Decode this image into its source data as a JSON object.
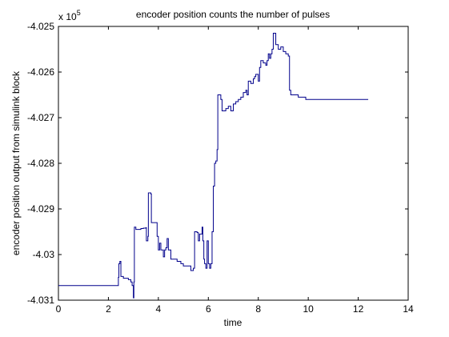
{
  "chart_data": {
    "type": "line",
    "title": "encoder position counts the number of pulses",
    "xlabel": "time",
    "ylabel": "encoder position output from simulink block",
    "exponent_label": {
      "base": "x 10",
      "power": "5"
    },
    "xlim": [
      0,
      14
    ],
    "ylim": [
      -4.031,
      -4.025
    ],
    "xticks": [
      "0",
      "2",
      "4",
      "6",
      "8",
      "10",
      "12",
      "14"
    ],
    "yticks": [
      "-4.025",
      "-4.026",
      "-4.027",
      "-4.028",
      "-4.029",
      "-4.03",
      "-4.031"
    ],
    "grid": false,
    "line_color": "#00008B",
    "series": [
      {
        "points": [
          [
            0.0,
            -4.03068
          ],
          [
            2.35,
            -4.03068
          ],
          [
            2.4,
            -4.0305
          ],
          [
            2.42,
            -4.0302
          ],
          [
            2.46,
            -4.03015
          ],
          [
            2.5,
            -4.03048
          ],
          [
            2.6,
            -4.03052
          ],
          [
            2.7,
            -4.03052
          ],
          [
            2.8,
            -4.03055
          ],
          [
            2.9,
            -4.0306
          ],
          [
            2.95,
            -4.03068
          ],
          [
            3.0,
            -4.03095
          ],
          [
            3.02,
            -4.0306
          ],
          [
            3.04,
            -4.0294
          ],
          [
            3.1,
            -4.02945
          ],
          [
            3.3,
            -4.02943
          ],
          [
            3.4,
            -4.02942
          ],
          [
            3.5,
            -4.02941
          ],
          [
            3.52,
            -4.0297
          ],
          [
            3.58,
            -4.0296
          ],
          [
            3.6,
            -4.02865
          ],
          [
            3.7,
            -4.02867
          ],
          [
            3.72,
            -4.0293
          ],
          [
            3.9,
            -4.0293
          ],
          [
            3.95,
            -4.0296
          ],
          [
            4.0,
            -4.0299
          ],
          [
            4.05,
            -4.02975
          ],
          [
            4.1,
            -4.0299
          ],
          [
            4.2,
            -4.03005
          ],
          [
            4.25,
            -4.0299
          ],
          [
            4.3,
            -4.02985
          ],
          [
            4.35,
            -4.02965
          ],
          [
            4.4,
            -4.0299
          ],
          [
            4.5,
            -4.0301
          ],
          [
            4.6,
            -4.0301
          ],
          [
            4.75,
            -4.03015
          ],
          [
            4.9,
            -4.0302
          ],
          [
            5.0,
            -4.03025
          ],
          [
            5.1,
            -4.03025
          ],
          [
            5.2,
            -4.03025
          ],
          [
            5.3,
            -4.03035
          ],
          [
            5.4,
            -4.0303
          ],
          [
            5.45,
            -4.0295
          ],
          [
            5.55,
            -4.02952
          ],
          [
            5.6,
            -4.0297
          ],
          [
            5.65,
            -4.02955
          ],
          [
            5.7,
            -4.02955
          ],
          [
            5.75,
            -4.0294
          ],
          [
            5.78,
            -4.0297
          ],
          [
            5.82,
            -4.0301
          ],
          [
            5.85,
            -4.0302
          ],
          [
            5.9,
            -4.0303
          ],
          [
            5.95,
            -4.0297
          ],
          [
            6.0,
            -4.0302
          ],
          [
            6.05,
            -4.0303
          ],
          [
            6.1,
            -4.0302
          ],
          [
            6.15,
            -4.0295
          ],
          [
            6.2,
            -4.0285
          ],
          [
            6.25,
            -4.028
          ],
          [
            6.3,
            -4.02795
          ],
          [
            6.35,
            -4.0277
          ],
          [
            6.38,
            -4.0265
          ],
          [
            6.45,
            -4.0265
          ],
          [
            6.5,
            -4.0266
          ],
          [
            6.55,
            -4.02685
          ],
          [
            6.6,
            -4.02685
          ],
          [
            6.7,
            -4.0268
          ],
          [
            6.8,
            -4.02675
          ],
          [
            6.9,
            -4.02685
          ],
          [
            7.0,
            -4.0267
          ],
          [
            7.1,
            -4.02665
          ],
          [
            7.2,
            -4.0266
          ],
          [
            7.3,
            -4.02655
          ],
          [
            7.4,
            -4.02645
          ],
          [
            7.5,
            -4.0264
          ],
          [
            7.55,
            -4.0265
          ],
          [
            7.6,
            -4.0262
          ],
          [
            7.7,
            -4.02625
          ],
          [
            7.8,
            -4.02615
          ],
          [
            7.85,
            -4.0261
          ],
          [
            7.9,
            -4.02605
          ],
          [
            8.0,
            -4.0262
          ],
          [
            8.05,
            -4.0259
          ],
          [
            8.1,
            -4.02575
          ],
          [
            8.2,
            -4.0258
          ],
          [
            8.3,
            -4.02585
          ],
          [
            8.35,
            -4.02575
          ],
          [
            8.4,
            -4.0256
          ],
          [
            8.45,
            -4.0257
          ],
          [
            8.5,
            -4.0256
          ],
          [
            8.55,
            -4.0255
          ],
          [
            8.6,
            -4.02515
          ],
          [
            8.7,
            -4.0254
          ],
          [
            8.8,
            -4.0255
          ],
          [
            8.9,
            -4.02545
          ],
          [
            9.0,
            -4.02555
          ],
          [
            9.1,
            -4.0256
          ],
          [
            9.2,
            -4.02565
          ],
          [
            9.25,
            -4.0264
          ],
          [
            9.3,
            -4.0265
          ],
          [
            9.5,
            -4.0265
          ],
          [
            9.6,
            -4.02655
          ],
          [
            9.8,
            -4.02655
          ],
          [
            9.9,
            -4.0266
          ],
          [
            10.0,
            -4.0266
          ],
          [
            11.0,
            -4.0266
          ],
          [
            12.4,
            -4.0266
          ]
        ]
      }
    ]
  }
}
